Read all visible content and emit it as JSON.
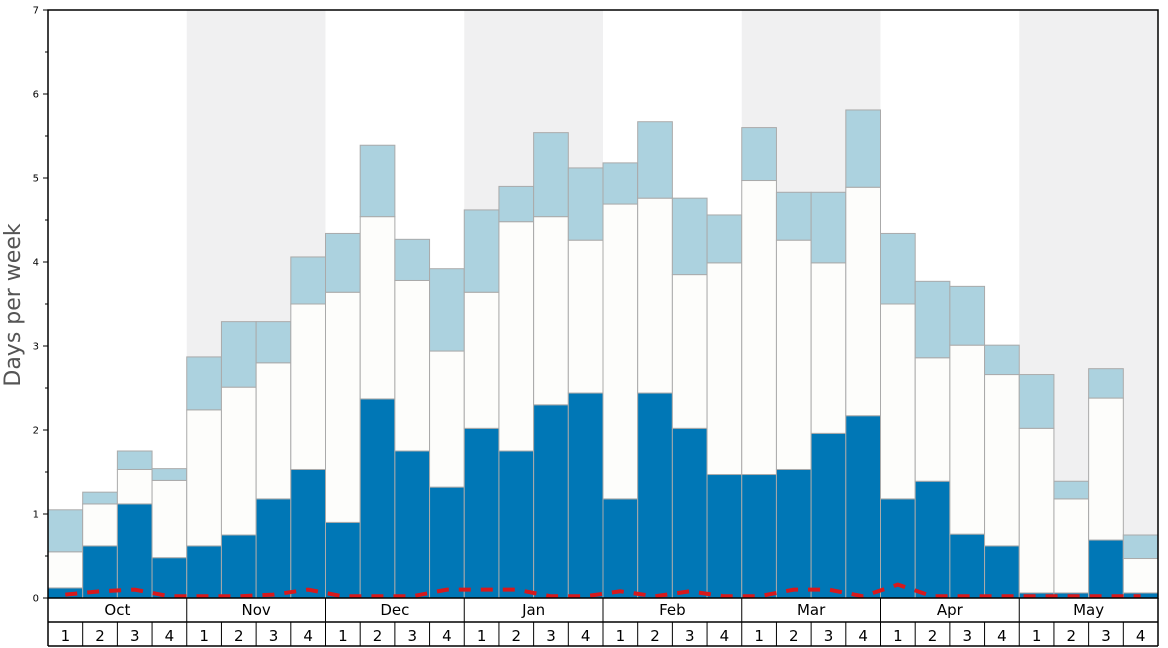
{
  "chart_data": {
    "type": "bar",
    "ylabel": "Days per week",
    "ylim": [
      0,
      7
    ],
    "y_ticks": [
      "0",
      "1",
      "2",
      "3",
      "4",
      "5",
      "6",
      "7"
    ],
    "months": [
      "Oct",
      "Nov",
      "Dec",
      "Jan",
      "Feb",
      "Mar",
      "Apr",
      "May"
    ],
    "weeks": [
      "1",
      "2",
      "3",
      "4"
    ],
    "stacked": true,
    "colors": {
      "series_1": "#0077b6",
      "series_2": "#fdfdfb",
      "series_3": "#acd2df",
      "line": "#d7191c",
      "alt_band": "#f0f0f1",
      "bar_stroke": "#aaaaaa"
    },
    "series": [
      {
        "key": "series_1",
        "values": [
          0.12,
          0.62,
          1.12,
          0.48,
          0.62,
          0.75,
          1.18,
          1.53,
          0.9,
          2.37,
          1.75,
          1.32,
          2.02,
          1.75,
          2.3,
          2.44,
          1.18,
          2.44,
          2.02,
          1.47,
          1.47,
          1.53,
          1.96,
          2.17,
          1.18,
          1.39,
          0.76,
          0.62,
          0.06,
          0.06,
          0.69,
          0.06
        ]
      },
      {
        "key": "series_2",
        "values": [
          0.43,
          0.5,
          0.41,
          0.92,
          1.62,
          1.76,
          1.62,
          1.97,
          2.74,
          2.17,
          2.03,
          1.62,
          1.62,
          2.73,
          2.24,
          1.82,
          3.51,
          2.32,
          1.83,
          2.52,
          3.5,
          2.73,
          2.03,
          2.72,
          2.32,
          1.47,
          2.25,
          2.04,
          1.96,
          1.12,
          1.69,
          0.41
        ]
      },
      {
        "key": "series_3",
        "values": [
          0.5,
          0.14,
          0.22,
          0.14,
          0.63,
          0.78,
          0.49,
          0.56,
          0.7,
          0.85,
          0.49,
          0.98,
          0.98,
          0.42,
          1.0,
          0.86,
          0.49,
          0.91,
          0.91,
          0.57,
          0.63,
          0.57,
          0.84,
          0.92,
          0.84,
          0.91,
          0.7,
          0.35,
          0.64,
          0.21,
          0.35,
          0.28
        ]
      }
    ],
    "line_values": [
      0.04,
      0.08,
      0.1,
      0.02,
      0.02,
      0.02,
      0.04,
      0.1,
      0.02,
      0.02,
      0.02,
      0.1,
      0.1,
      0.1,
      0.02,
      0.02,
      0.08,
      0.02,
      0.08,
      0.02,
      0.02,
      0.1,
      0.1,
      0.02,
      0.16,
      0.02,
      0.02,
      0.02,
      0.02,
      0.02,
      0.02,
      0.02
    ],
    "grid": false,
    "legend": "none"
  }
}
